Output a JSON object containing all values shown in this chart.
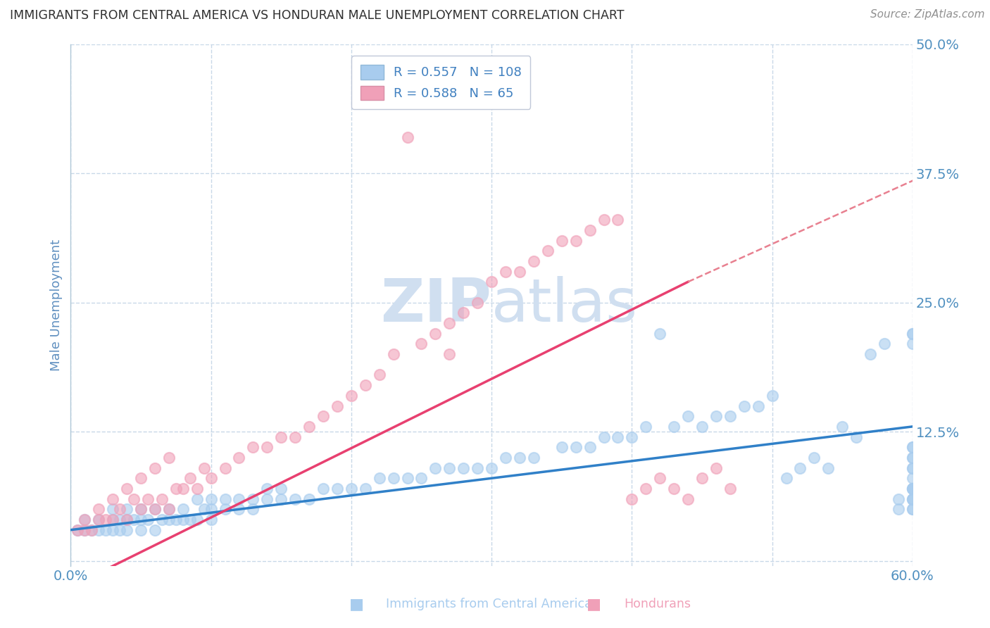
{
  "title": "IMMIGRANTS FROM CENTRAL AMERICA VS HONDURAN MALE UNEMPLOYMENT CORRELATION CHART",
  "source": "Source: ZipAtlas.com",
  "ylabel": "Male Unemployment",
  "xlim": [
    0.0,
    0.6
  ],
  "ylim": [
    -0.005,
    0.5
  ],
  "yticks": [
    0.0,
    0.125,
    0.25,
    0.375,
    0.5
  ],
  "ytick_labels": [
    "",
    "12.5%",
    "25.0%",
    "37.5%",
    "50.0%"
  ],
  "xticks": [
    0.0,
    0.1,
    0.2,
    0.3,
    0.4,
    0.5,
    0.6
  ],
  "xtick_labels": [
    "0.0%",
    "",
    "",
    "",
    "",
    "",
    "60.0%"
  ],
  "legend_R1": "0.557",
  "legend_N1": "108",
  "legend_R2": "0.588",
  "legend_N2": "65",
  "series1_color": "#A8CCEE",
  "series2_color": "#F0A0B8",
  "line1_color": "#3080C8",
  "line2_color": "#E84070",
  "line2_dash_color": "#E88090",
  "watermark_color": "#D0DFF0",
  "background_color": "#FFFFFF",
  "grid_color": "#C8D8E8",
  "title_color": "#303030",
  "axis_label_color": "#6090C0",
  "tick_color": "#5090C0",
  "legend_text_color": "#4080C0",
  "blue_scatter_x": [
    0.005,
    0.01,
    0.01,
    0.015,
    0.02,
    0.02,
    0.025,
    0.03,
    0.03,
    0.03,
    0.035,
    0.035,
    0.04,
    0.04,
    0.04,
    0.045,
    0.05,
    0.05,
    0.05,
    0.055,
    0.06,
    0.06,
    0.065,
    0.07,
    0.07,
    0.075,
    0.08,
    0.08,
    0.085,
    0.09,
    0.09,
    0.095,
    0.1,
    0.1,
    0.1,
    0.11,
    0.11,
    0.12,
    0.12,
    0.13,
    0.13,
    0.14,
    0.14,
    0.15,
    0.15,
    0.16,
    0.17,
    0.18,
    0.19,
    0.2,
    0.21,
    0.22,
    0.23,
    0.24,
    0.25,
    0.26,
    0.27,
    0.28,
    0.29,
    0.3,
    0.31,
    0.32,
    0.33,
    0.35,
    0.36,
    0.37,
    0.38,
    0.39,
    0.4,
    0.41,
    0.42,
    0.43,
    0.44,
    0.45,
    0.46,
    0.47,
    0.48,
    0.49,
    0.5,
    0.51,
    0.52,
    0.53,
    0.54,
    0.55,
    0.56,
    0.57,
    0.58,
    0.59,
    0.59,
    0.6,
    0.6,
    0.6,
    0.6,
    0.6,
    0.6,
    0.6,
    0.6,
    0.6,
    0.6,
    0.6,
    0.6,
    0.6,
    0.6,
    0.6,
    0.6,
    0.6,
    0.6,
    0.6
  ],
  "blue_scatter_y": [
    0.03,
    0.03,
    0.04,
    0.03,
    0.03,
    0.04,
    0.03,
    0.03,
    0.04,
    0.05,
    0.03,
    0.04,
    0.03,
    0.04,
    0.05,
    0.04,
    0.03,
    0.04,
    0.05,
    0.04,
    0.03,
    0.05,
    0.04,
    0.04,
    0.05,
    0.04,
    0.04,
    0.05,
    0.04,
    0.04,
    0.06,
    0.05,
    0.04,
    0.05,
    0.06,
    0.05,
    0.06,
    0.05,
    0.06,
    0.05,
    0.06,
    0.06,
    0.07,
    0.06,
    0.07,
    0.06,
    0.06,
    0.07,
    0.07,
    0.07,
    0.07,
    0.08,
    0.08,
    0.08,
    0.08,
    0.09,
    0.09,
    0.09,
    0.09,
    0.09,
    0.1,
    0.1,
    0.1,
    0.11,
    0.11,
    0.11,
    0.12,
    0.12,
    0.12,
    0.13,
    0.22,
    0.13,
    0.14,
    0.13,
    0.14,
    0.14,
    0.15,
    0.15,
    0.16,
    0.08,
    0.09,
    0.1,
    0.09,
    0.13,
    0.12,
    0.2,
    0.21,
    0.05,
    0.06,
    0.07,
    0.08,
    0.09,
    0.1,
    0.11,
    0.09,
    0.1,
    0.11,
    0.22,
    0.21,
    0.22,
    0.06,
    0.07,
    0.05,
    0.06,
    0.07,
    0.05,
    0.06,
    0.07
  ],
  "pink_scatter_x": [
    0.005,
    0.01,
    0.01,
    0.015,
    0.02,
    0.02,
    0.025,
    0.03,
    0.03,
    0.035,
    0.04,
    0.04,
    0.045,
    0.05,
    0.05,
    0.055,
    0.06,
    0.06,
    0.065,
    0.07,
    0.07,
    0.075,
    0.08,
    0.085,
    0.09,
    0.095,
    0.1,
    0.11,
    0.12,
    0.13,
    0.14,
    0.15,
    0.16,
    0.17,
    0.18,
    0.19,
    0.2,
    0.21,
    0.22,
    0.23,
    0.24,
    0.25,
    0.26,
    0.27,
    0.27,
    0.28,
    0.29,
    0.3,
    0.31,
    0.32,
    0.33,
    0.34,
    0.35,
    0.36,
    0.37,
    0.38,
    0.39,
    0.4,
    0.41,
    0.42,
    0.43,
    0.44,
    0.45,
    0.46,
    0.47
  ],
  "pink_scatter_y": [
    0.03,
    0.03,
    0.04,
    0.03,
    0.04,
    0.05,
    0.04,
    0.04,
    0.06,
    0.05,
    0.04,
    0.07,
    0.06,
    0.05,
    0.08,
    0.06,
    0.05,
    0.09,
    0.06,
    0.05,
    0.1,
    0.07,
    0.07,
    0.08,
    0.07,
    0.09,
    0.08,
    0.09,
    0.1,
    0.11,
    0.11,
    0.12,
    0.12,
    0.13,
    0.14,
    0.15,
    0.16,
    0.17,
    0.18,
    0.2,
    0.41,
    0.21,
    0.22,
    0.23,
    0.2,
    0.24,
    0.25,
    0.27,
    0.28,
    0.28,
    0.29,
    0.3,
    0.31,
    0.31,
    0.32,
    0.33,
    0.33,
    0.06,
    0.07,
    0.08,
    0.07,
    0.06,
    0.08,
    0.09,
    0.07
  ]
}
